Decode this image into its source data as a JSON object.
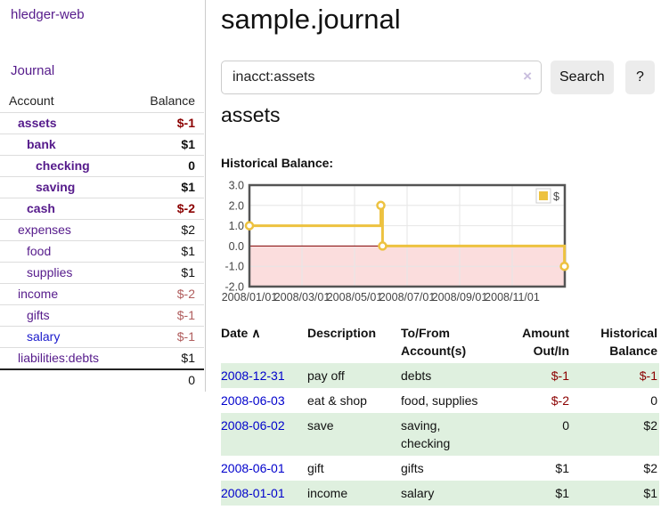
{
  "brand": "hledger-web",
  "colors": {
    "link_purple": "#551a8b",
    "link_blue": "#1a1acc",
    "date_link_blue": "#0000cc",
    "negative_strong": "#8b0000",
    "negative_soft": "#b05d5d",
    "row_stripe_green": "#dff0df",
    "chart_gold": "#edc240"
  },
  "sidebar": {
    "journal_link": "Journal",
    "accounts_table": {
      "account_header": "Account",
      "balance_header": "Balance",
      "rows": [
        {
          "account": "assets",
          "balance": "$-1",
          "depth": 1,
          "bold": true,
          "neg": "strong"
        },
        {
          "account": "bank",
          "balance": "$1",
          "depth": 2,
          "bold": true
        },
        {
          "account": "checking",
          "balance": "0",
          "depth": 3,
          "bold": true
        },
        {
          "account": "saving",
          "balance": "$1",
          "depth": 3,
          "bold": true
        },
        {
          "account": "cash",
          "balance": "$-2",
          "depth": 2,
          "bold": true,
          "neg": "strong"
        },
        {
          "account": "expenses",
          "balance": "$2",
          "depth": 1
        },
        {
          "account": "food",
          "balance": "$1",
          "depth": 2
        },
        {
          "account": "supplies",
          "balance": "$1",
          "depth": 2
        },
        {
          "account": "income",
          "balance": "$-2",
          "depth": 1,
          "neg": "soft"
        },
        {
          "account": "gifts",
          "balance": "$-1",
          "depth": 2,
          "neg": "soft"
        },
        {
          "account": "salary",
          "balance": "$-1",
          "depth": 2,
          "neg": "soft",
          "blue": true
        },
        {
          "account": "liabilities:debts",
          "balance": "$1",
          "depth": 1
        }
      ],
      "total": "0"
    }
  },
  "main": {
    "title": "sample.journal",
    "search": {
      "value": "inacct:assets",
      "clear_icon": "×",
      "search_button": "Search",
      "help_button": "?"
    },
    "heading": "assets",
    "chart_label": "Historical Balance:"
  },
  "chart_data": {
    "type": "line",
    "title": "Historical Balance:",
    "step": true,
    "series": [
      {
        "name": "$",
        "color": "#edc240",
        "points": [
          {
            "date": "2008-01-01",
            "value": 1
          },
          {
            "date": "2008-06-01",
            "value": 2
          },
          {
            "date": "2008-06-03",
            "value": 0
          },
          {
            "date": "2008-12-31",
            "value": -1
          }
        ]
      }
    ],
    "x_ticks": [
      "2008/01/01",
      "2008/03/01",
      "2008/05/01",
      "2008/07/01",
      "2008/09/01",
      "2008/11/01"
    ],
    "x_tick_interval_months": 2,
    "months_span": 12,
    "y_ticks": [
      3.0,
      2.0,
      1.0,
      0.0,
      -1.0,
      -2.0
    ],
    "ylim": [
      -2,
      3
    ],
    "grid": true,
    "legend_position": "top-right",
    "negative_region_color": "#fbdddd",
    "zero_line_color": "#800000"
  },
  "register": {
    "headers": [
      "Date",
      "Description",
      "To/From Account(s)",
      "Amount Out/In",
      "Historical Balance"
    ],
    "sort_icon": "∧",
    "rows": [
      {
        "date": "2008-12-31",
        "description": "pay off",
        "accounts": "debts",
        "amount": "$-1",
        "balance": "$-1",
        "amount_neg": true,
        "balance_neg": true
      },
      {
        "date": "2008-06-03",
        "description": "eat & shop",
        "accounts": "food, supplies",
        "amount": "$-2",
        "balance": "0",
        "amount_neg": true,
        "balance_neg": false
      },
      {
        "date": "2008-06-02",
        "description": "save",
        "accounts": "saving, checking",
        "amount": "0",
        "balance": "$2",
        "amount_neg": false,
        "balance_neg": false
      },
      {
        "date": "2008-06-01",
        "description": "gift",
        "accounts": "gifts",
        "amount": "$1",
        "balance": "$2",
        "amount_neg": false,
        "balance_neg": false
      },
      {
        "date": "2008-01-01",
        "description": "income",
        "accounts": "salary",
        "amount": "$1",
        "balance": "$1",
        "amount_neg": false,
        "balance_neg": false
      }
    ]
  }
}
